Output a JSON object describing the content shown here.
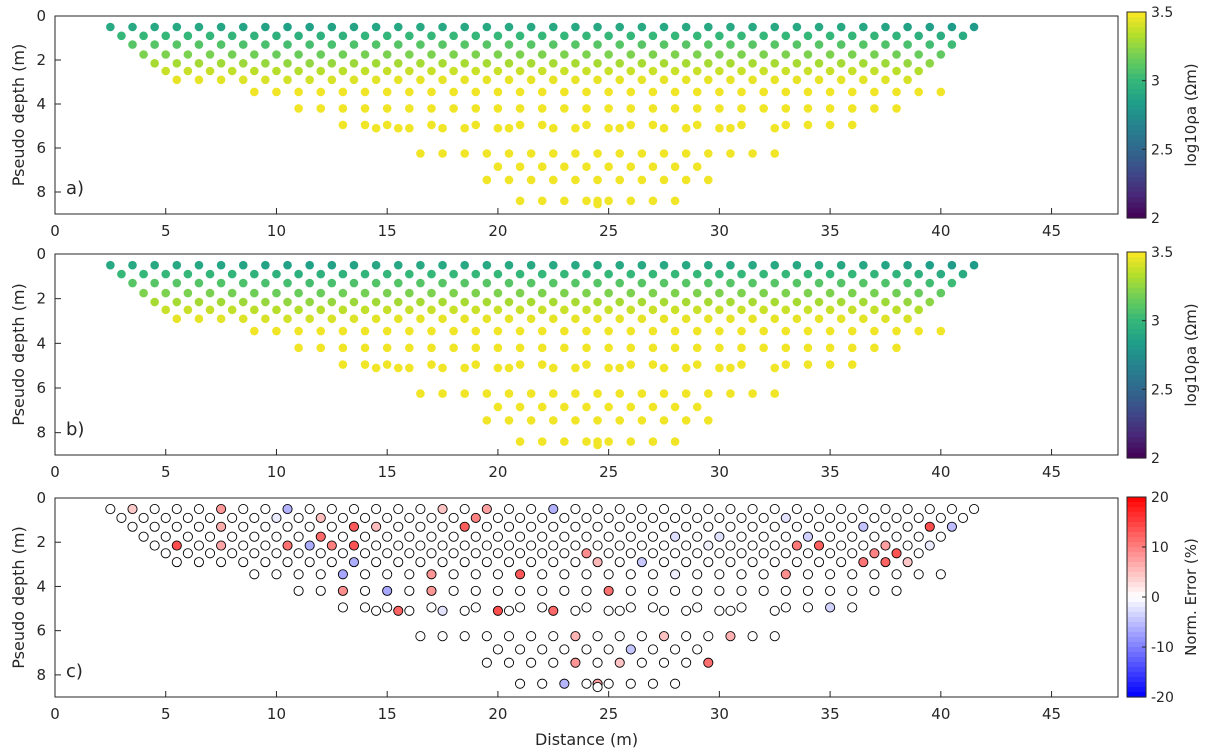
{
  "chart_data": [
    {
      "type": "scatter",
      "panel_label": "a)",
      "ylabel": "Pseudo depth (m)",
      "xlabel": "",
      "xlim": [
        0,
        48
      ],
      "ylim": [
        9,
        0
      ],
      "x_ticks": [
        "0",
        "5",
        "10",
        "15",
        "20",
        "25",
        "30",
        "35",
        "40",
        "45"
      ],
      "y_ticks": [
        "0",
        "2",
        "4",
        "6",
        "8"
      ],
      "colorbar": {
        "label": "log10ρa (Ωm)",
        "colormap": "viridis",
        "min": 2,
        "max": 3.5,
        "ticks": [
          "2",
          "2.5",
          "3",
          "3.5"
        ]
      },
      "grid": false
    },
    {
      "type": "scatter",
      "panel_label": "b)",
      "ylabel": "Pseudo depth (m)",
      "xlabel": "",
      "xlim": [
        0,
        48
      ],
      "ylim": [
        9,
        0
      ],
      "x_ticks": [
        "0",
        "5",
        "10",
        "15",
        "20",
        "25",
        "30",
        "35",
        "40",
        "45"
      ],
      "y_ticks": [
        "0",
        "2",
        "4",
        "6",
        "8"
      ],
      "colorbar": {
        "label": "log10ρa (Ωm)",
        "colormap": "viridis",
        "min": 2,
        "max": 3.5,
        "ticks": [
          "2",
          "2.5",
          "3",
          "3.5"
        ]
      },
      "grid": false
    },
    {
      "type": "scatter",
      "panel_label": "c)",
      "ylabel": "Pseudo depth (m)",
      "xlabel": "Distance (m)",
      "xlim": [
        0,
        48
      ],
      "ylim": [
        9,
        0
      ],
      "x_ticks": [
        "0",
        "5",
        "10",
        "15",
        "20",
        "25",
        "30",
        "35",
        "40",
        "45"
      ],
      "y_ticks": [
        "0",
        "2",
        "4",
        "6",
        "8"
      ],
      "colorbar": {
        "label": "Norm. Error (%)",
        "colormap": "blue-white-red",
        "min": -20,
        "max": 20,
        "ticks": [
          "-20",
          "-10",
          "0",
          "10",
          "20"
        ]
      },
      "grid": false
    }
  ],
  "colors": {
    "axis": "#262626",
    "error_positive": "#ff0000",
    "error_negative": "#0000ff",
    "viridis_low": "#440154",
    "viridis_high": "#fde725"
  }
}
